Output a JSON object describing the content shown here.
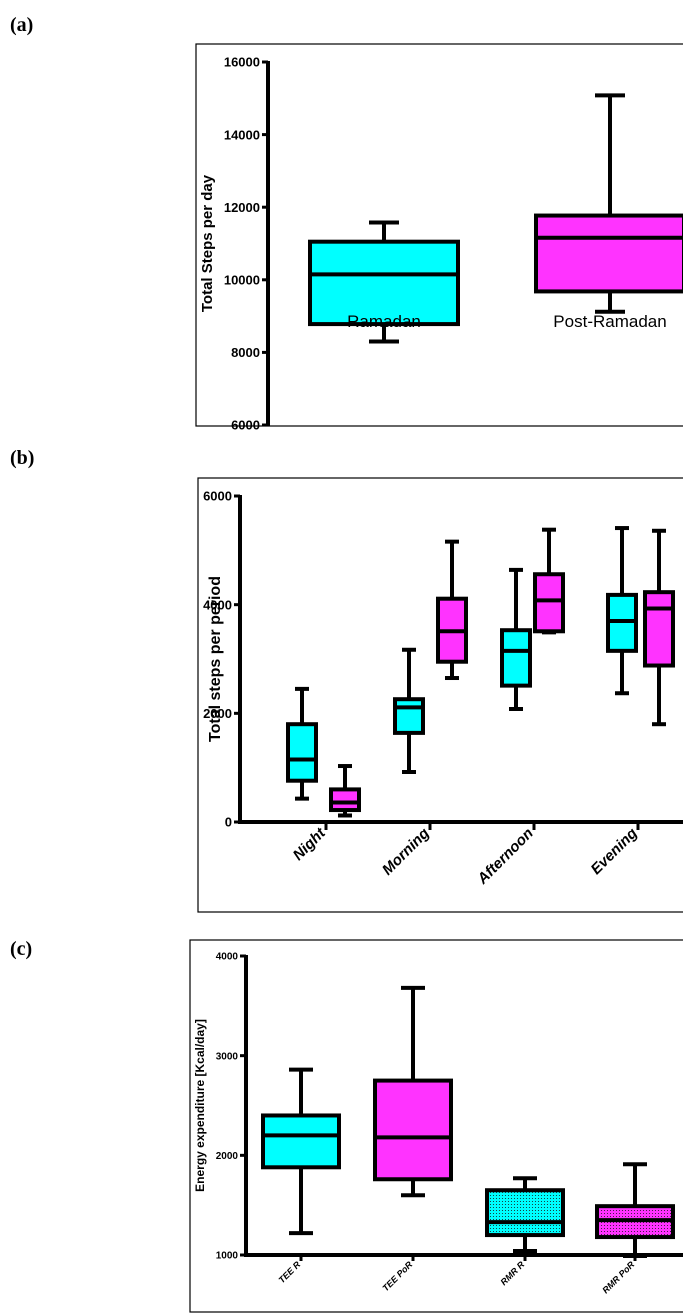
{
  "labels": {
    "a": "(a)",
    "b": "(b)",
    "c": "(c)"
  },
  "chart_data": [
    {
      "panel": "(a)",
      "type": "box",
      "ylabel": "Total Steps per day",
      "ylim": [
        6000,
        16000
      ],
      "yticks": [
        6000,
        8000,
        10000,
        12000,
        14000,
        16000
      ],
      "categories": [
        "Ramadan",
        "Post-Ramadan"
      ],
      "category_label_position": "inside-plot",
      "boxes": [
        {
          "category": "Ramadan",
          "min": 8300,
          "q1": 8780,
          "median": 10150,
          "q3": 11050,
          "max": 11580,
          "color": "#00ffff",
          "pattern": "solid"
        },
        {
          "category": "Post-Ramadan",
          "min": 9120,
          "q1": 9680,
          "median": 11160,
          "q3": 11770,
          "max": 15080,
          "color": "#ff33ff",
          "pattern": "solid"
        }
      ]
    },
    {
      "panel": "(b)",
      "type": "box",
      "ylabel": "Total steps per  period",
      "ylim": [
        0,
        6000
      ],
      "yticks": [
        0,
        2000,
        4000,
        6000
      ],
      "categories": [
        "Night",
        "Morning",
        "Afternoon",
        "Evening"
      ],
      "boxes": [
        {
          "category": "Night",
          "min": 430,
          "q1": 760,
          "median": 1150,
          "q3": 1800,
          "max": 2450,
          "color": "#00ffff",
          "pattern": "solid"
        },
        {
          "category": "Night",
          "min": 120,
          "q1": 220,
          "median": 360,
          "q3": 600,
          "max": 1030,
          "color": "#ff33ff",
          "pattern": "solid"
        },
        {
          "category": "Morning",
          "min": 920,
          "q1": 1640,
          "median": 2110,
          "q3": 2260,
          "max": 3170,
          "color": "#00ffff",
          "pattern": "solid"
        },
        {
          "category": "Morning",
          "min": 2650,
          "q1": 2950,
          "median": 3510,
          "q3": 4110,
          "max": 5160,
          "color": "#ff33ff",
          "pattern": "solid"
        },
        {
          "category": "Afternoon",
          "min": 2080,
          "q1": 2510,
          "median": 3150,
          "q3": 3530,
          "max": 4640,
          "color": "#00ffff",
          "pattern": "solid"
        },
        {
          "category": "Afternoon",
          "min": 3490,
          "q1": 3510,
          "median": 4080,
          "q3": 4560,
          "max": 5380,
          "color": "#ff33ff",
          "pattern": "solid"
        },
        {
          "category": "Evening",
          "min": 2370,
          "q1": 3150,
          "median": 3700,
          "q3": 4180,
          "max": 5410,
          "color": "#00ffff",
          "pattern": "solid"
        },
        {
          "category": "Evening",
          "min": 1800,
          "q1": 2880,
          "median": 3930,
          "q3": 4230,
          "max": 5360,
          "color": "#ff33ff",
          "pattern": "solid"
        }
      ]
    },
    {
      "panel": "(c)",
      "type": "box",
      "ylabel": "Energy expenditure [Kcal/day]",
      "ylim": [
        1000,
        4000
      ],
      "yticks": [
        1000,
        2000,
        3000,
        4000
      ],
      "categories": [
        "TEE R",
        "TEE PoR",
        "RMR R",
        "RMR PoR"
      ],
      "boxes": [
        {
          "category": "TEE R",
          "min": 1220,
          "q1": 1880,
          "median": 2200,
          "q3": 2400,
          "max": 2860,
          "color": "#00ffff",
          "pattern": "solid"
        },
        {
          "category": "TEE PoR",
          "min": 1600,
          "q1": 1760,
          "median": 2180,
          "q3": 2750,
          "max": 3680,
          "color": "#ff33ff",
          "pattern": "solid"
        },
        {
          "category": "RMR R",
          "min": 1040,
          "q1": 1200,
          "median": 1330,
          "q3": 1650,
          "max": 1770,
          "color": "#00ffff",
          "pattern": "dotted"
        },
        {
          "category": "RMR PoR",
          "min": 990,
          "q1": 1180,
          "median": 1350,
          "q3": 1490,
          "max": 1910,
          "color": "#ff33ff",
          "pattern": "dotted"
        }
      ]
    }
  ]
}
